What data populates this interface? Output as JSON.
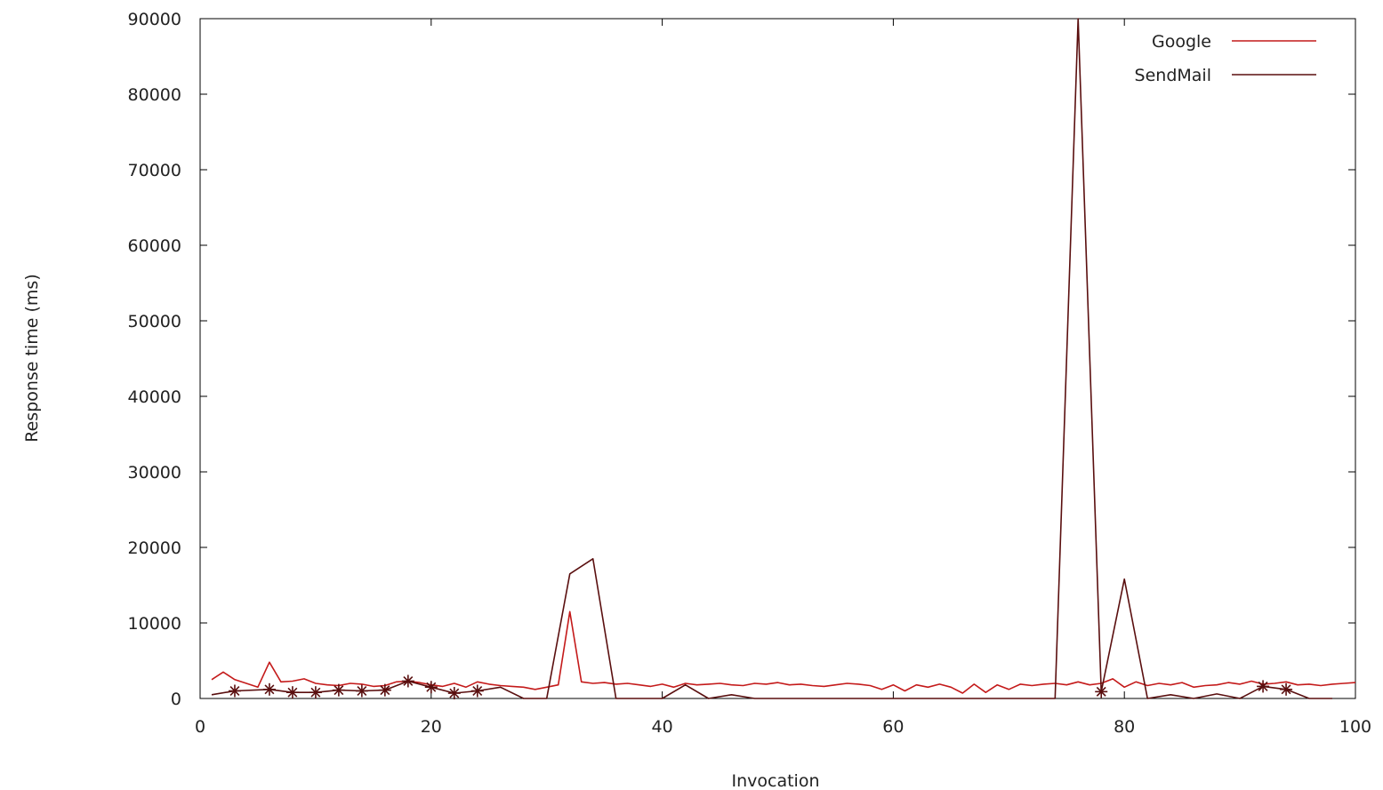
{
  "chart_data": {
    "type": "line",
    "title": "",
    "xlabel": "Invocation",
    "ylabel": "Response time (ms)",
    "xlim": [
      0,
      100
    ],
    "ylim": [
      0,
      90000
    ],
    "x_ticks": [
      "0",
      "20",
      "40",
      "60",
      "80",
      "100"
    ],
    "y_ticks": [
      "0",
      "10000",
      "20000",
      "30000",
      "40000",
      "50000",
      "60000",
      "70000",
      "80000",
      "90000"
    ],
    "grid": false,
    "legend_position": "top-right",
    "series": [
      {
        "name": "Google",
        "color": "#c41a1a",
        "points": [
          [
            1,
            2500
          ],
          [
            2,
            3500
          ],
          [
            3,
            2500
          ],
          [
            4,
            2000
          ],
          [
            5,
            1500
          ],
          [
            6,
            4800
          ],
          [
            7,
            2200
          ],
          [
            8,
            2300
          ],
          [
            9,
            2600
          ],
          [
            10,
            2000
          ],
          [
            11,
            1800
          ],
          [
            12,
            1700
          ],
          [
            13,
            2000
          ],
          [
            14,
            1900
          ],
          [
            15,
            1600
          ],
          [
            16,
            1700
          ],
          [
            17,
            2200
          ],
          [
            18,
            2300
          ],
          [
            19,
            2100
          ],
          [
            20,
            1800
          ],
          [
            21,
            1600
          ],
          [
            22,
            2000
          ],
          [
            23,
            1500
          ],
          [
            24,
            2200
          ],
          [
            25,
            1900
          ],
          [
            26,
            1700
          ],
          [
            27,
            1600
          ],
          [
            28,
            1500
          ],
          [
            29,
            1200
          ],
          [
            30,
            1500
          ],
          [
            31,
            1800
          ],
          [
            32,
            11500
          ],
          [
            33,
            2200
          ],
          [
            34,
            2000
          ],
          [
            35,
            2100
          ],
          [
            36,
            1900
          ],
          [
            37,
            2000
          ],
          [
            38,
            1800
          ],
          [
            39,
            1600
          ],
          [
            40,
            1900
          ],
          [
            41,
            1500
          ],
          [
            42,
            2000
          ],
          [
            43,
            1800
          ],
          [
            44,
            1900
          ],
          [
            45,
            2000
          ],
          [
            46,
            1800
          ],
          [
            47,
            1700
          ],
          [
            48,
            2000
          ],
          [
            49,
            1900
          ],
          [
            50,
            2100
          ],
          [
            51,
            1800
          ],
          [
            52,
            1900
          ],
          [
            53,
            1700
          ],
          [
            54,
            1600
          ],
          [
            55,
            1800
          ],
          [
            56,
            2000
          ],
          [
            57,
            1900
          ],
          [
            58,
            1700
          ],
          [
            59,
            1200
          ],
          [
            60,
            1800
          ],
          [
            61,
            1000
          ],
          [
            62,
            1800
          ],
          [
            63,
            1500
          ],
          [
            64,
            1900
          ],
          [
            65,
            1500
          ],
          [
            66,
            700
          ],
          [
            67,
            1900
          ],
          [
            68,
            800
          ],
          [
            69,
            1800
          ],
          [
            70,
            1200
          ],
          [
            71,
            1900
          ],
          [
            72,
            1700
          ],
          [
            73,
            1900
          ],
          [
            74,
            2000
          ],
          [
            75,
            1800
          ],
          [
            76,
            2200
          ],
          [
            77,
            1800
          ],
          [
            78,
            2000
          ],
          [
            79,
            2600
          ],
          [
            80,
            1500
          ],
          [
            81,
            2200
          ],
          [
            82,
            1700
          ],
          [
            83,
            2000
          ],
          [
            84,
            1800
          ],
          [
            85,
            2100
          ],
          [
            86,
            1500
          ],
          [
            87,
            1700
          ],
          [
            88,
            1800
          ],
          [
            89,
            2100
          ],
          [
            90,
            1900
          ],
          [
            91,
            2300
          ],
          [
            92,
            1900
          ],
          [
            93,
            2000
          ],
          [
            94,
            2200
          ],
          [
            95,
            1800
          ],
          [
            96,
            1900
          ],
          [
            97,
            1700
          ],
          [
            98,
            1900
          ],
          [
            99,
            2000
          ],
          [
            100,
            2100
          ]
        ]
      },
      {
        "name": "SendMail",
        "color": "#5a0f0f",
        "marker_indices": [
          3,
          6,
          8,
          10,
          12,
          14,
          16,
          18,
          20,
          22,
          24,
          78,
          92,
          94
        ],
        "points": [
          [
            1,
            500
          ],
          [
            3,
            1000
          ],
          [
            6,
            1200
          ],
          [
            8,
            800
          ],
          [
            10,
            800
          ],
          [
            12,
            1100
          ],
          [
            14,
            1000
          ],
          [
            16,
            1100
          ],
          [
            18,
            2300
          ],
          [
            20,
            1500
          ],
          [
            22,
            700
          ],
          [
            24,
            1000
          ],
          [
            26,
            1500
          ],
          [
            28,
            0
          ],
          [
            30,
            0
          ],
          [
            32,
            16500
          ],
          [
            34,
            18500
          ],
          [
            36,
            0
          ],
          [
            40,
            0
          ],
          [
            42,
            1800
          ],
          [
            44,
            0
          ],
          [
            46,
            500
          ],
          [
            48,
            0
          ],
          [
            52,
            0
          ],
          [
            56,
            0
          ],
          [
            60,
            0
          ],
          [
            62,
            0
          ],
          [
            66,
            0
          ],
          [
            70,
            0
          ],
          [
            74,
            0
          ],
          [
            76,
            90000
          ],
          [
            78,
            900
          ],
          [
            80,
            15800
          ],
          [
            82,
            0
          ],
          [
            84,
            500
          ],
          [
            86,
            0
          ],
          [
            88,
            600
          ],
          [
            90,
            0
          ],
          [
            92,
            1600
          ],
          [
            94,
            1200
          ],
          [
            96,
            0
          ],
          [
            98,
            0
          ]
        ]
      }
    ]
  }
}
